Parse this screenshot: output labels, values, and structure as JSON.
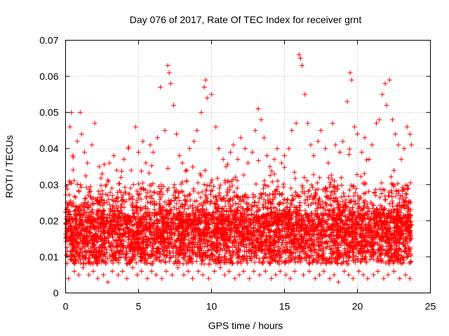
{
  "chart_data": {
    "type": "scatter",
    "title": "Day 076 of 2017, Rate Of TEC Index for receiver grnt",
    "xlabel": "GPS time / hours",
    "ylabel": "ROTI / TECUs",
    "xlim": [
      0,
      25
    ],
    "ylim": [
      0,
      0.07
    ],
    "xticks": [
      "0",
      "5",
      "10",
      "15",
      "20",
      "25"
    ],
    "yticks": [
      "0",
      "0.01",
      "0.02",
      "0.03",
      "0.04",
      "0.05",
      "0.06",
      "0.07"
    ],
    "grid": true,
    "marker": "+",
    "color": "#ff0000",
    "series": [
      {
        "x": [
          0.1,
          0.3,
          0.4,
          0.5,
          0.8,
          1.0,
          1.1,
          1.3,
          1.5,
          1.8,
          2.0,
          2.3,
          2.5,
          2.8,
          3.0,
          3.3,
          3.5,
          3.8,
          4.0,
          4.3,
          4.5,
          4.8,
          5.0,
          5.3,
          5.5,
          5.8,
          6.0,
          6.3,
          6.5,
          6.8,
          7.0,
          7.1,
          7.2,
          7.4,
          7.6,
          7.8,
          8.0,
          8.3,
          8.5,
          8.8,
          9.0,
          9.3,
          9.5,
          9.6,
          9.7,
          10.0,
          10.3,
          10.5,
          10.8,
          11.0,
          11.3,
          11.5,
          11.8,
          12.0,
          12.3,
          12.5,
          12.8,
          13.0,
          13.2,
          13.4,
          13.6,
          13.8,
          14.0,
          14.3,
          14.5,
          14.8,
          15.0,
          15.3,
          15.5,
          15.8,
          16.0,
          16.1,
          16.2,
          16.4,
          16.6,
          16.8,
          17.0,
          17.3,
          17.5,
          17.8,
          18.0,
          18.3,
          18.5,
          18.8,
          19.0,
          19.3,
          19.5,
          19.6,
          19.8,
          20.0,
          20.3,
          20.5,
          20.8,
          21.0,
          21.3,
          21.5,
          21.7,
          21.9,
          22.0,
          22.2,
          22.4,
          22.6,
          22.8,
          23.0,
          23.2,
          23.4,
          23.6,
          23.7
        ],
        "y": [
          0.025,
          0.046,
          0.05,
          0.038,
          0.042,
          0.05,
          0.044,
          0.039,
          0.036,
          0.041,
          0.047,
          0.035,
          0.033,
          0.03,
          0.036,
          0.038,
          0.034,
          0.032,
          0.037,
          0.04,
          0.034,
          0.046,
          0.039,
          0.042,
          0.036,
          0.041,
          0.039,
          0.043,
          0.057,
          0.045,
          0.063,
          0.061,
          0.058,
          0.052,
          0.044,
          0.038,
          0.036,
          0.034,
          0.04,
          0.042,
          0.045,
          0.05,
          0.057,
          0.059,
          0.054,
          0.055,
          0.046,
          0.04,
          0.037,
          0.035,
          0.039,
          0.041,
          0.037,
          0.043,
          0.04,
          0.036,
          0.039,
          0.045,
          0.051,
          0.048,
          0.043,
          0.038,
          0.035,
          0.037,
          0.04,
          0.036,
          0.038,
          0.04,
          0.045,
          0.047,
          0.066,
          0.065,
          0.063,
          0.055,
          0.047,
          0.041,
          0.038,
          0.042,
          0.045,
          0.04,
          0.036,
          0.047,
          0.041,
          0.039,
          0.042,
          0.053,
          0.061,
          0.059,
          0.046,
          0.044,
          0.039,
          0.043,
          0.037,
          0.041,
          0.047,
          0.048,
          0.055,
          0.058,
          0.052,
          0.059,
          0.048,
          0.044,
          0.041,
          0.037,
          0.04,
          0.046,
          0.044,
          0.041
        ]
      },
      {
        "x": [
          0.2,
          0.6,
          0.9,
          1.2,
          1.6,
          1.9,
          2.2,
          2.6,
          2.9,
          3.2,
          3.6,
          3.9,
          4.2,
          4.6,
          4.9,
          5.2,
          5.6,
          5.9,
          6.2,
          6.6,
          6.9,
          7.3,
          7.7,
          8.1,
          8.4,
          8.7,
          9.1,
          9.4,
          9.8,
          10.2,
          10.6,
          10.9,
          11.2,
          11.6,
          11.9,
          12.2,
          12.6,
          12.9,
          13.3,
          13.7,
          14.1,
          14.4,
          14.7,
          15.1,
          15.4,
          15.7,
          16.3,
          16.7,
          17.1,
          17.4,
          17.7,
          18.1,
          18.4,
          18.7,
          19.1,
          19.4,
          19.7,
          20.1,
          20.4,
          20.7,
          21.1,
          21.4,
          21.8,
          22.1,
          22.5,
          22.9,
          23.3,
          23.6
        ],
        "y": [
          0.004,
          0.006,
          0.005,
          0.007,
          0.005,
          0.006,
          0.004,
          0.005,
          0.003,
          0.006,
          0.005,
          0.006,
          0.004,
          0.007,
          0.005,
          0.006,
          0.004,
          0.006,
          0.005,
          0.004,
          0.006,
          0.005,
          0.007,
          0.005,
          0.006,
          0.004,
          0.006,
          0.005,
          0.004,
          0.006,
          0.007,
          0.005,
          0.006,
          0.004,
          0.005,
          0.006,
          0.004,
          0.006,
          0.005,
          0.006,
          0.004,
          0.005,
          0.006,
          0.005,
          0.004,
          0.006,
          0.005,
          0.006,
          0.004,
          0.005,
          0.006,
          0.004,
          0.005,
          0.003,
          0.006,
          0.005,
          0.004,
          0.006,
          0.005,
          0.004,
          0.005,
          0.006,
          0.004,
          0.005,
          0.006,
          0.004,
          0.005,
          0.004
        ]
      }
    ]
  }
}
